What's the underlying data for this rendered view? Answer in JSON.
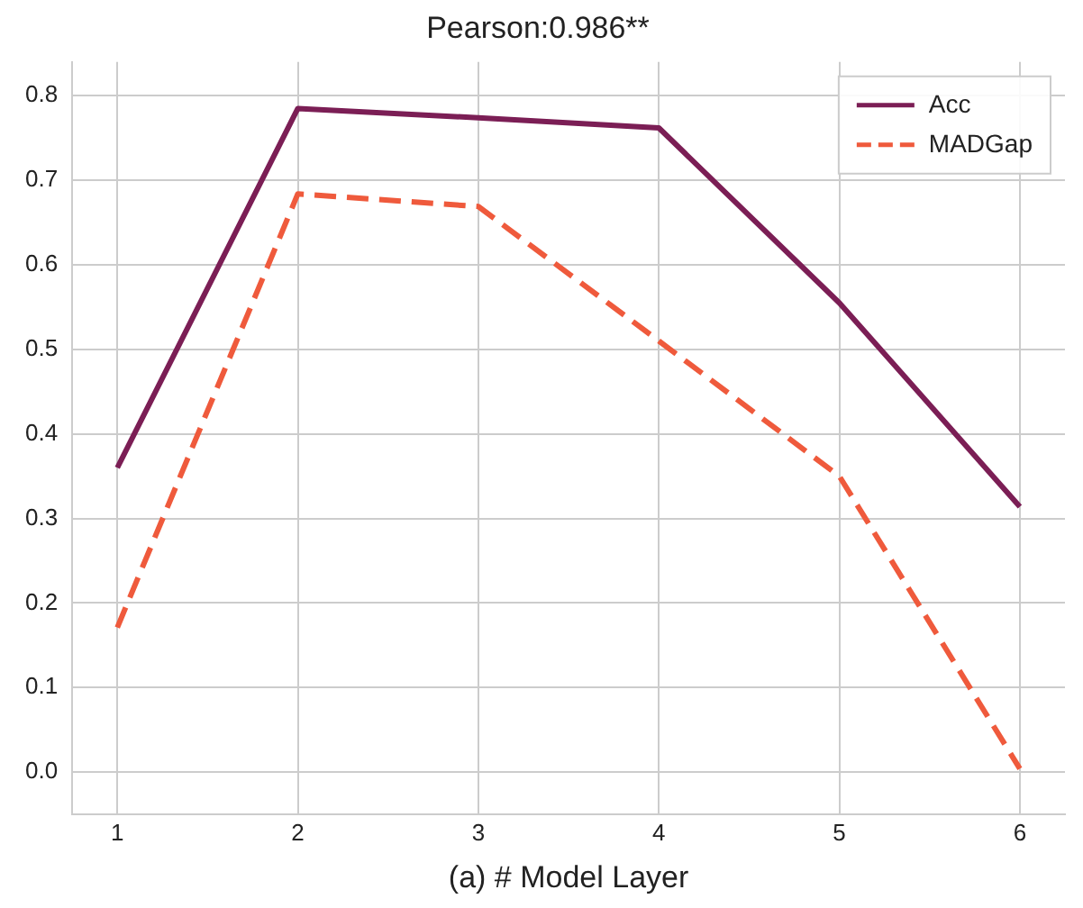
{
  "chart_data": {
    "type": "line",
    "title": "Pearson:0.986**",
    "xlabel": "(a) # Model Layer",
    "x": [
      1,
      2,
      3,
      4,
      5,
      6
    ],
    "series": [
      {
        "name": "Acc",
        "color": "#7b1e55",
        "values": [
          0.36,
          0.785,
          0.774,
          0.762,
          0.555,
          0.314
        ],
        "line_style": "solid"
      },
      {
        "name": "MADGap",
        "color": "#ef5a3c",
        "values": [
          0.171,
          0.684,
          0.669,
          0.51,
          0.35,
          0.004
        ],
        "line_style": "dashed"
      }
    ],
    "xlim": [
      0.75,
      6.25
    ],
    "xticks": [
      1,
      2,
      3,
      4,
      5,
      6
    ],
    "ylim": [
      -0.05,
      0.84
    ],
    "yticks": [
      {
        "value": 0,
        "label": "0.0"
      },
      0.1,
      0.2,
      0.3,
      0.4,
      0.5,
      0.6,
      0.7,
      0.8
    ],
    "grid": true,
    "legend": "top right",
    "marker": "none"
  }
}
